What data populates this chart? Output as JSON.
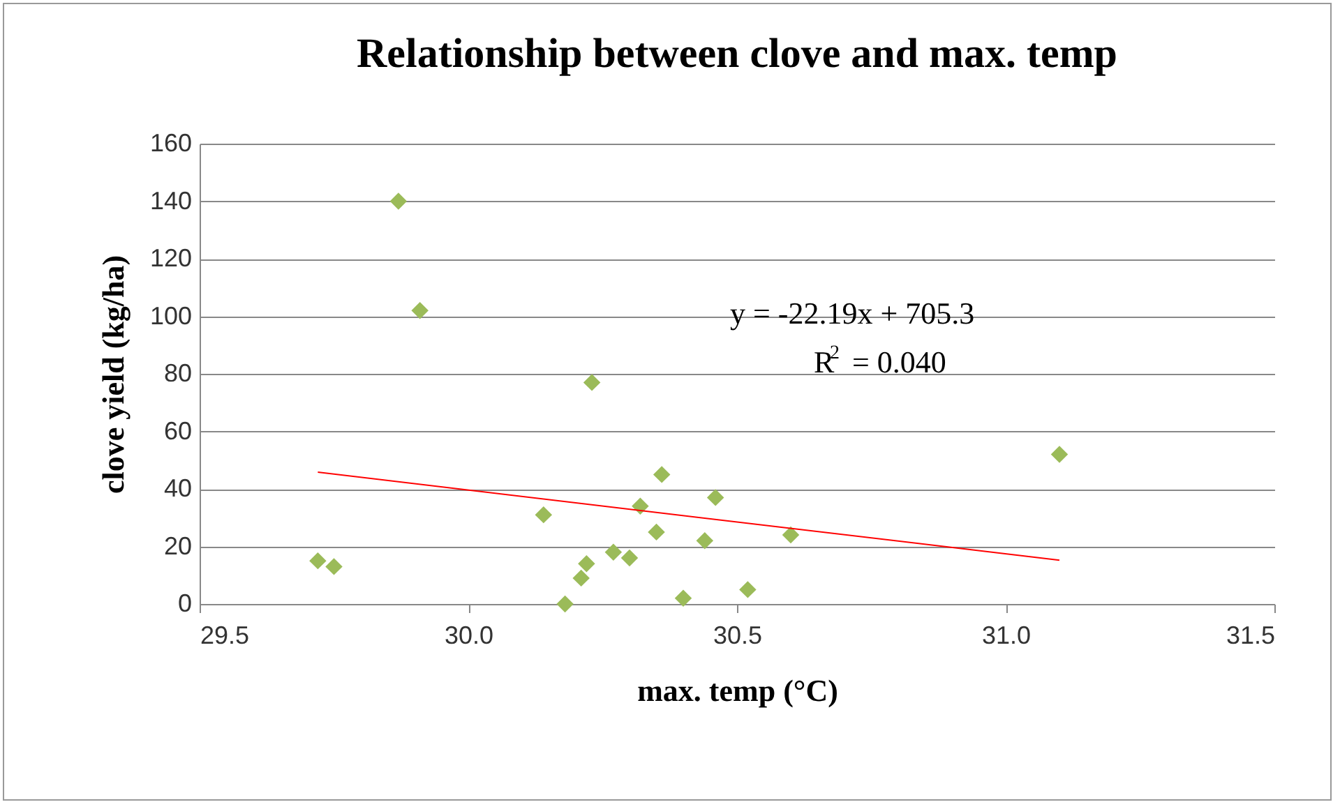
{
  "chart_data": {
    "type": "scatter",
    "title": "Relationship between clove and max. temp",
    "xlabel": "max. temp (°C)",
    "ylabel": "clove yield (kg/ha)",
    "annotations": [
      "y = -22.19x + 705.3",
      "R$^{2}$ = 0.040"
    ],
    "series": [
      {
        "color": "#9bbb59",
        "marker": "diamond",
        "x": [
          29.72,
          29.75,
          29.87,
          29.91,
          30.14,
          30.18,
          30.21,
          30.22,
          30.23,
          30.27,
          30.3,
          30.32,
          30.35,
          30.36,
          30.4,
          30.44,
          30.46,
          30.52,
          30.6,
          31.1
        ],
        "values": [
          15,
          13,
          140,
          102,
          31,
          0,
          9,
          14,
          77,
          18,
          16,
          34,
          25,
          45,
          2,
          22,
          37,
          5,
          24,
          52
        ]
      },
      {
        "type": "line",
        "color": "#ff0000",
        "x": [
          29.72,
          31.1
        ],
        "values": [
          45.8,
          15.2
        ]
      }
    ],
    "xlim": [
      29.5,
      31.5
    ],
    "xticks": [
      29.5,
      {
        "value": 30,
        "label": "30.0"
      },
      30.5,
      {
        "value": 31,
        "label": "31.0"
      },
      31.5
    ],
    "ylim": [
      0,
      160
    ],
    "yticks": [
      0,
      20,
      40,
      60,
      80,
      100,
      120,
      140,
      160
    ],
    "grid": "y"
  }
}
